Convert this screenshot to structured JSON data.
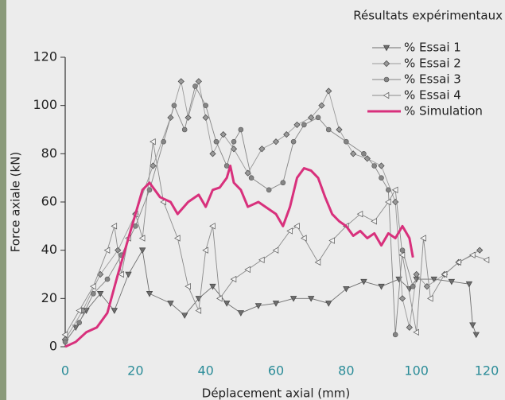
{
  "chart_data": {
    "type": "line",
    "title": "Résultats expérimentaux",
    "xlabel": "Déplacement axial (mm)",
    "ylabel": "Force axiale (kN)",
    "xlim": [
      0,
      120
    ],
    "ylim": [
      0,
      120
    ],
    "xticks": [
      0,
      20,
      40,
      60,
      80,
      100,
      120
    ],
    "yticks": [
      0,
      20,
      40,
      60,
      80,
      100,
      120
    ],
    "grid": false,
    "legend": "top-right",
    "series": [
      {
        "name": "% Essai 1",
        "color": "#6e6e6e",
        "marker": "triangle-down",
        "x": [
          0,
          3,
          6,
          10,
          14,
          18,
          22,
          24,
          30,
          34,
          38,
          42,
          46,
          50,
          55,
          60,
          65,
          70,
          75,
          80,
          85,
          90,
          95,
          98,
          100,
          105,
          110,
          115,
          116,
          117
        ],
        "values": [
          2,
          8,
          15,
          22,
          15,
          30,
          40,
          22,
          18,
          13,
          20,
          25,
          18,
          14,
          17,
          18,
          20,
          20,
          18,
          24,
          27,
          25,
          28,
          24,
          28,
          28,
          27,
          26,
          9,
          5
        ]
      },
      {
        "name": "% Essai 2",
        "color": "#9a9a9a",
        "marker": "diamond",
        "x": [
          0,
          5,
          10,
          15,
          20,
          25,
          30,
          33,
          35,
          38,
          40,
          42,
          45,
          48,
          52,
          56,
          60,
          63,
          66,
          70,
          73,
          75,
          78,
          82,
          86,
          90,
          94,
          96,
          98,
          100,
          103,
          108,
          112,
          118
        ],
        "values": [
          3,
          15,
          30,
          40,
          55,
          75,
          95,
          110,
          95,
          110,
          95,
          80,
          88,
          82,
          72,
          82,
          85,
          88,
          92,
          95,
          100,
          106,
          90,
          80,
          78,
          75,
          60,
          20,
          8,
          30,
          25,
          30,
          35,
          40
        ]
      },
      {
        "name": "% Essai 3",
        "color": "#858585",
        "marker": "circle",
        "x": [
          0,
          4,
          8,
          12,
          16,
          20,
          24,
          28,
          31,
          34,
          37,
          40,
          43,
          46,
          48,
          50,
          53,
          58,
          62,
          65,
          68,
          72,
          75,
          80,
          85,
          88,
          90,
          92,
          94,
          96,
          99
        ],
        "values": [
          2,
          10,
          22,
          28,
          38,
          50,
          65,
          85,
          100,
          90,
          108,
          100,
          85,
          75,
          85,
          90,
          70,
          65,
          68,
          85,
          92,
          95,
          90,
          85,
          80,
          75,
          70,
          65,
          5,
          40,
          25
        ]
      },
      {
        "name": "% Essai 4",
        "color": "#8a8a8a",
        "marker": "triangle-left",
        "x": [
          0,
          4,
          8,
          12,
          14,
          16,
          18,
          20,
          22,
          25,
          28,
          32,
          35,
          38,
          40,
          42,
          44,
          48,
          52,
          56,
          60,
          64,
          66,
          68,
          72,
          76,
          80,
          84,
          88,
          92,
          94,
          96,
          100,
          102,
          104,
          108,
          112,
          116,
          120
        ],
        "values": [
          5,
          15,
          25,
          40,
          50,
          30,
          45,
          55,
          45,
          85,
          60,
          45,
          25,
          15,
          40,
          50,
          20,
          28,
          32,
          36,
          40,
          48,
          50,
          45,
          35,
          44,
          50,
          55,
          52,
          60,
          65,
          38,
          6,
          45,
          20,
          30,
          35,
          38,
          36
        ]
      },
      {
        "name": "% Simulation",
        "color": "#d8307c",
        "marker": "none",
        "x": [
          0,
          3,
          6,
          9,
          12,
          15,
          18,
          20,
          22,
          24,
          27,
          30,
          32,
          35,
          38,
          40,
          42,
          44,
          46,
          47,
          48,
          50,
          52,
          55,
          58,
          60,
          62,
          64,
          66,
          68,
          70,
          72,
          74,
          76,
          78,
          80,
          82,
          84,
          86,
          88,
          90,
          92,
          94,
          96,
          98,
          99
        ],
        "values": [
          0,
          2,
          6,
          8,
          14,
          30,
          45,
          55,
          65,
          68,
          62,
          60,
          55,
          60,
          63,
          58,
          65,
          66,
          70,
          75,
          68,
          65,
          58,
          60,
          57,
          55,
          50,
          58,
          70,
          74,
          73,
          70,
          62,
          55,
          52,
          50,
          46,
          48,
          45,
          47,
          42,
          47,
          45,
          50,
          45,
          37
        ]
      }
    ]
  }
}
